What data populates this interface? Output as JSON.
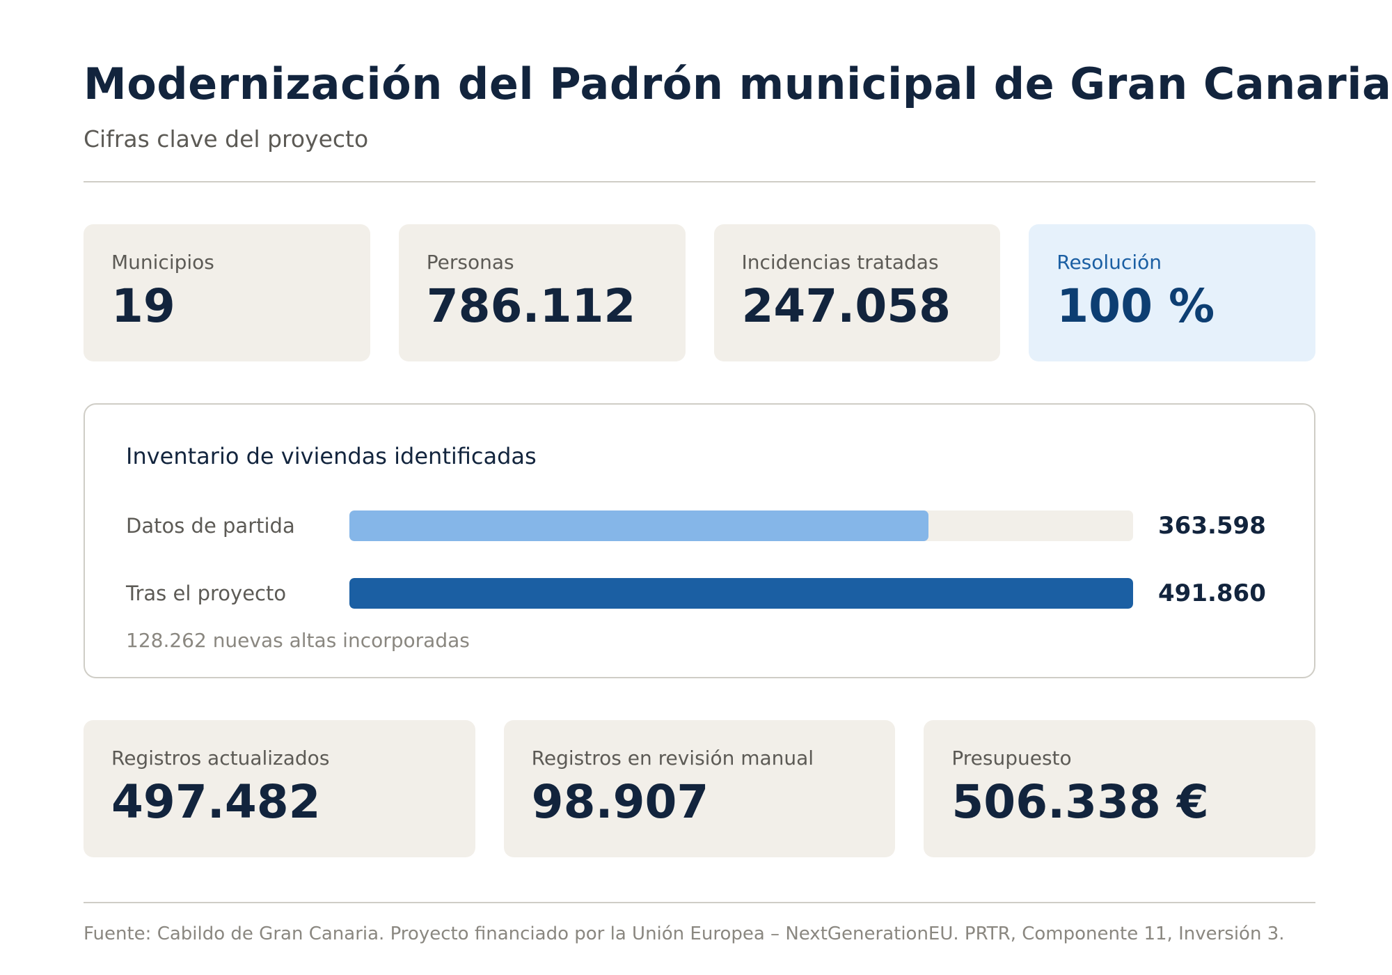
{
  "header": {
    "title": "Modernización del Padrón municipal de Gran Canaria",
    "subtitle": "Cifras clave del proyecto"
  },
  "kpis_top": [
    {
      "label": "Municipios",
      "value": "19"
    },
    {
      "label": "Personas",
      "value": "786.112"
    },
    {
      "label": "Incidencias tratadas",
      "value": "247.058"
    },
    {
      "label": "Resolución",
      "value": "100 %"
    }
  ],
  "inventory": {
    "title": "Inventario de viviendas identificadas",
    "max": 491860,
    "rows": [
      {
        "label": "Datos de partida",
        "value": 363598,
        "display": "363.598",
        "color": "#85b6e8"
      },
      {
        "label": "Tras el proyecto",
        "value": 491860,
        "display": "491.860",
        "color": "#1b5fa3"
      }
    ],
    "note": "128.262 nuevas altas incorporadas"
  },
  "kpis_bottom": [
    {
      "label": "Registros actualizados",
      "value": "497.482"
    },
    {
      "label": "Registros en revisión manual",
      "value": "98.907"
    },
    {
      "label": "Presupuesto",
      "value": "506.338 €"
    }
  ],
  "footer": {
    "source": "Fuente: Cabildo de Gran Canaria. Proyecto financiado por la Unión Europea – NextGenerationEU. PRTR, Componente 11, Inversión 3."
  },
  "colors": {
    "title": "#12243d",
    "card": "#f2efe9",
    "highlight_card": "#e6f1fb",
    "highlight_text": "#1b5fa3",
    "accent_light": "#85b6e8",
    "accent_dark": "#1b5fa3"
  }
}
